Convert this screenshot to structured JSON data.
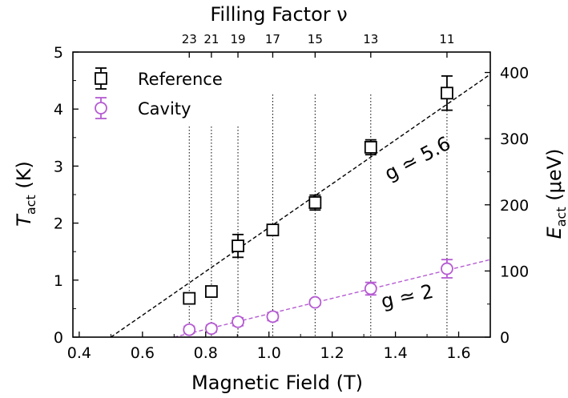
{
  "chart_data": {
    "type": "scatter",
    "top_title": "Filling Factor ν",
    "xlabel": "Magnetic Field (T)",
    "ylabel_left_main": "T",
    "ylabel_left_sub": "act",
    "ylabel_left_unit": " (K)",
    "ylabel_right_main": "E",
    "ylabel_right_sub": "act",
    "ylabel_right_unit": " (μeV)",
    "xlim": [
      0.38,
      1.7
    ],
    "ylim_left": [
      0,
      5
    ],
    "ylim_right": [
      0,
      430.9
    ],
    "x_ticks": [
      {
        "value": 0.4,
        "label": "0.4"
      },
      {
        "value": 0.6,
        "label": "0.6"
      },
      {
        "value": 0.8,
        "label": "0.8"
      },
      {
        "value": 1.0,
        "label": "1.0"
      },
      {
        "value": 1.2,
        "label": "1.2"
      },
      {
        "value": 1.4,
        "label": "1.4"
      },
      {
        "value": 1.6,
        "label": "1.6"
      }
    ],
    "y_left_ticks": [
      {
        "value": 0,
        "label": "0"
      },
      {
        "value": 1,
        "label": "1"
      },
      {
        "value": 2,
        "label": "2"
      },
      {
        "value": 3,
        "label": "3"
      },
      {
        "value": 4,
        "label": "4"
      },
      {
        "value": 5,
        "label": "5"
      }
    ],
    "y_right_ticks": [
      {
        "value": 0,
        "label": "0"
      },
      {
        "value": 100,
        "label": "100"
      },
      {
        "value": 200,
        "label": "200"
      },
      {
        "value": 300,
        "label": "300"
      },
      {
        "value": 400,
        "label": "400"
      }
    ],
    "filling_factors": [
      {
        "nu": "23",
        "field": 0.748
      },
      {
        "nu": "21",
        "field": 0.818
      },
      {
        "nu": "19",
        "field": 0.902
      },
      {
        "nu": "17",
        "field": 1.012
      },
      {
        "nu": "15",
        "field": 1.146
      },
      {
        "nu": "13",
        "field": 1.322
      },
      {
        "nu": "11",
        "field": 1.563
      }
    ],
    "series": [
      {
        "name": "Reference",
        "color": "#000000",
        "marker": "square",
        "points": [
          {
            "x": 0.748,
            "y": 0.68,
            "err": 0.07
          },
          {
            "x": 0.818,
            "y": 0.8,
            "err": 0.07
          },
          {
            "x": 0.902,
            "y": 1.6,
            "err": 0.2
          },
          {
            "x": 1.012,
            "y": 1.88,
            "err": 0.08
          },
          {
            "x": 1.146,
            "y": 2.36,
            "err": 0.13
          },
          {
            "x": 1.322,
            "y": 3.33,
            "err": 0.13
          },
          {
            "x": 1.563,
            "y": 4.28,
            "err": 0.3
          }
        ],
        "fit": {
          "x": [
            0.5,
            1.7
          ],
          "y": [
            0.0,
            4.61
          ],
          "label": "g ≃ 5.6"
        }
      },
      {
        "name": "Cavity",
        "color": "#b55bd2",
        "marker": "circle",
        "points": [
          {
            "x": 0.748,
            "y": 0.13,
            "err": 0.06
          },
          {
            "x": 0.818,
            "y": 0.15,
            "err": 0.06
          },
          {
            "x": 0.902,
            "y": 0.27,
            "err": 0.07
          },
          {
            "x": 1.012,
            "y": 0.36,
            "err": 0.07
          },
          {
            "x": 1.146,
            "y": 0.61,
            "err": 0.05
          },
          {
            "x": 1.322,
            "y": 0.85,
            "err": 0.11
          },
          {
            "x": 1.563,
            "y": 1.2,
            "err": 0.16
          }
        ],
        "fit": {
          "x": [
            0.7,
            1.7
          ],
          "y": [
            0.0,
            1.36
          ],
          "label": "g ≃ 2"
        }
      }
    ]
  }
}
